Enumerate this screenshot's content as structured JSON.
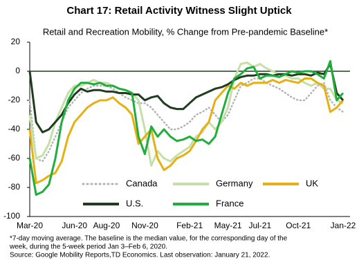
{
  "chart_data": {
    "type": "line",
    "title": "Chart 17: Retail Activity Witness Slight Uptick",
    "subtitle": "Retail and Recreation Mobility,  % Change from Pre-pandemic Baseline*",
    "categories": [
      "Mar-20",
      null,
      null,
      null,
      null,
      null,
      null,
      "Jun-20",
      null,
      null,
      null,
      null,
      "Aug-20",
      null,
      null,
      null,
      null,
      null,
      "Nov-20",
      null,
      null,
      null,
      null,
      null,
      null,
      "Feb-21",
      null,
      null,
      null,
      null,
      null,
      "May-21",
      null,
      null,
      null,
      null,
      "Jul-21",
      null,
      null,
      null,
      null,
      null,
      "Oct-21",
      null,
      null,
      null,
      null,
      null,
      null,
      "Jan-22"
    ],
    "series": [
      {
        "name": "Canada",
        "color": "#b3b3b3",
        "dash": "dotted",
        "values": [
          -20,
          -60,
          -62,
          -55,
          -45,
          -35,
          -25,
          -20,
          -15,
          -12,
          -10,
          -10,
          -10,
          -12,
          -15,
          -18,
          -20,
          -22,
          -22,
          -25,
          -30,
          -35,
          -40,
          -40,
          -38,
          -35,
          -30,
          -28,
          -25,
          -30,
          -35,
          -30,
          -20,
          -10,
          -8,
          -5,
          -5,
          -8,
          -10,
          -12,
          -15,
          -18,
          -20,
          -20,
          -15,
          -10,
          -8,
          -20,
          -25,
          -28
        ]
      },
      {
        "name": "Germany",
        "color": "#c4e0a8",
        "values": [
          -30,
          -60,
          -58,
          -50,
          -35,
          -25,
          -15,
          -10,
          -10,
          -8,
          -6,
          -8,
          -8,
          -10,
          -12,
          -13,
          -15,
          -20,
          -40,
          -65,
          -55,
          -60,
          -62,
          -58,
          -55,
          -52,
          -45,
          -42,
          -35,
          -40,
          -35,
          -25,
          -5,
          5,
          6,
          3,
          5,
          2,
          0,
          -2,
          -3,
          -5,
          -5,
          -8,
          -10,
          -8,
          -12,
          -12,
          -20,
          -22
        ]
      },
      {
        "name": "UK",
        "color": "#e6b012",
        "values": [
          -40,
          -77,
          -75,
          -72,
          -70,
          -62,
          -45,
          -35,
          -30,
          -25,
          -22,
          -20,
          -20,
          -18,
          -22,
          -25,
          -30,
          -50,
          -45,
          -40,
          -60,
          -68,
          -65,
          -60,
          -58,
          -55,
          -48,
          -40,
          -35,
          -20,
          -15,
          -10,
          -12,
          -8,
          -10,
          -8,
          -8,
          -8,
          -6,
          -8,
          -6,
          -7,
          -8,
          -5,
          -5,
          -8,
          -10,
          -28,
          -25,
          -20
        ]
      },
      {
        "name": "U.S.",
        "color": "#1e3d1e",
        "values": [
          0,
          -35,
          -42,
          -40,
          -35,
          -30,
          -22,
          -16,
          -12,
          -14,
          -13,
          -13,
          -14,
          -14,
          -15,
          -15,
          -16,
          -16,
          -20,
          -18,
          -17,
          -22,
          -25,
          -26,
          -26,
          -22,
          -18,
          -16,
          -14,
          -12,
          -11,
          -9,
          -6,
          -4,
          -3,
          -3,
          -2,
          -2,
          -3,
          -2,
          -2,
          -3,
          -2,
          -2,
          -3,
          -1,
          -2,
          5,
          -15,
          -20
        ]
      },
      {
        "name": "France",
        "color": "#1fae3a",
        "values": [
          -60,
          -85,
          -83,
          -78,
          -60,
          -35,
          -20,
          -12,
          -8,
          -8,
          -9,
          -8,
          -10,
          -10,
          -12,
          -13,
          -15,
          -45,
          -57,
          -38,
          -45,
          -40,
          -45,
          -48,
          -47,
          -45,
          -48,
          -47,
          -50,
          -45,
          -30,
          -15,
          -5,
          -2,
          2,
          3,
          -5,
          -3,
          -3,
          -4,
          -2,
          0,
          -1,
          0,
          0,
          -2,
          -5,
          7,
          -20,
          -15
        ]
      }
    ],
    "ylim": [
      -100,
      20
    ],
    "yticks": [
      -100,
      -80,
      -60,
      -40,
      -20,
      0,
      20
    ],
    "notes": [
      "*7-day moving average. The baseline is the median value, for the corresponding day of the",
      "week, during the 5-week period Jan 3–Feb 6, 2020.",
      "Source: Google Mobility Reports,TD Economics. Last observation: January 21, 2022."
    ]
  }
}
